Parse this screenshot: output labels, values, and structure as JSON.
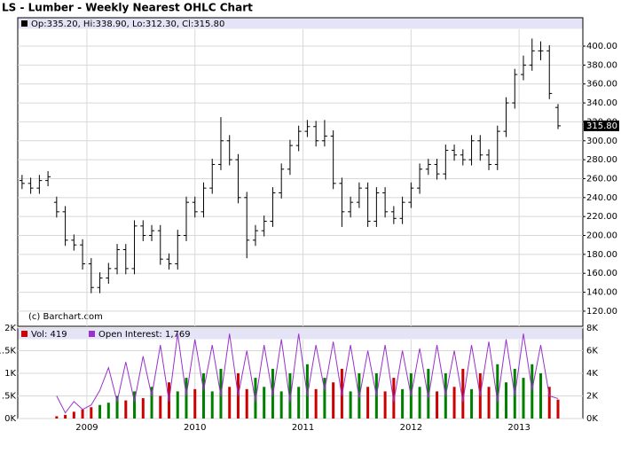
{
  "chart_data": {
    "type": "ohlc",
    "title": "LS - Lumber - Weekly Nearest OHLC Chart",
    "subtitle": "Op:335.20, Hi:338.90, Lo:312.30, Cl:315.80",
    "watermark": "(c) Barchart.com",
    "x": [
      2008.4,
      2008.48,
      2008.56,
      2008.64,
      2008.72,
      2008.8,
      2008.88,
      2008.96,
      2009.04,
      2009.12,
      2009.2,
      2009.28,
      2009.36,
      2009.44,
      2009.52,
      2009.6,
      2009.68,
      2009.76,
      2009.84,
      2009.92,
      2010,
      2010.08,
      2010.16,
      2010.24,
      2010.32,
      2010.4,
      2010.48,
      2010.56,
      2010.64,
      2010.72,
      2010.8,
      2010.88,
      2010.96,
      2011.04,
      2011.12,
      2011.2,
      2011.28,
      2011.36,
      2011.44,
      2011.52,
      2011.6,
      2011.68,
      2011.76,
      2011.84,
      2011.92,
      2012,
      2012.08,
      2012.16,
      2012.24,
      2012.32,
      2012.4,
      2012.48,
      2012.56,
      2012.64,
      2012.72,
      2012.8,
      2012.88,
      2012.96,
      2013.04,
      2013.12,
      2013.2,
      2013.28,
      2013.36
    ],
    "open": [
      258,
      255,
      250,
      258,
      235,
      225,
      195,
      190,
      170,
      145,
      155,
      165,
      185,
      165,
      210,
      200,
      205,
      175,
      170,
      200,
      235,
      225,
      250,
      275,
      300,
      280,
      240,
      195,
      205,
      215,
      245,
      270,
      295,
      310,
      315,
      300,
      305,
      255,
      225,
      235,
      250,
      215,
      245,
      225,
      218,
      235,
      250,
      270,
      275,
      265,
      290,
      285,
      280,
      300,
      285,
      275,
      310,
      340,
      370,
      380,
      395,
      395,
      335.2
    ],
    "high": [
      264,
      261,
      264,
      268,
      241,
      231,
      201,
      196,
      176,
      161,
      171,
      191,
      191,
      216,
      216,
      211,
      211,
      181,
      206,
      241,
      241,
      256,
      281,
      325,
      306,
      286,
      246,
      211,
      221,
      251,
      276,
      301,
      316,
      322,
      321,
      322,
      311,
      261,
      241,
      256,
      256,
      251,
      251,
      231,
      241,
      256,
      276,
      281,
      281,
      296,
      296,
      291,
      306,
      306,
      291,
      316,
      346,
      376,
      390,
      408,
      405,
      401,
      338.9
    ],
    "low": [
      249,
      244,
      244,
      252,
      219,
      189,
      184,
      164,
      139,
      139,
      149,
      159,
      159,
      159,
      194,
      194,
      169,
      164,
      164,
      194,
      219,
      219,
      244,
      269,
      274,
      234,
      176,
      189,
      199,
      209,
      239,
      264,
      289,
      304,
      294,
      294,
      249,
      209,
      219,
      229,
      209,
      209,
      219,
      212,
      212,
      229,
      244,
      264,
      259,
      259,
      279,
      274,
      274,
      279,
      269,
      269,
      304,
      334,
      364,
      374,
      385,
      344,
      312.3
    ],
    "close": [
      255,
      250,
      258,
      262,
      225,
      195,
      190,
      170,
      145,
      155,
      165,
      185,
      165,
      210,
      200,
      205,
      175,
      170,
      200,
      235,
      225,
      250,
      275,
      300,
      280,
      240,
      195,
      205,
      215,
      245,
      270,
      295,
      310,
      315,
      300,
      305,
      255,
      225,
      235,
      250,
      215,
      245,
      225,
      218,
      235,
      250,
      270,
      275,
      265,
      290,
      285,
      280,
      300,
      285,
      275,
      310,
      340,
      370,
      380,
      395,
      395,
      350,
      315.8
    ],
    "up_color": "#008000",
    "down_color": "#cc0000",
    "bar_color": "#000000",
    "xlim": [
      2008.36,
      2013.59
    ],
    "xticks": [
      2009,
      2010,
      2011,
      2012,
      2013
    ],
    "ylim": [
      104,
      430
    ],
    "yticks": [
      {
        "value": 120,
        "label": "120.00"
      },
      {
        "value": 140,
        "label": "140.00"
      },
      {
        "value": 160,
        "label": "160.00"
      },
      {
        "value": 180,
        "label": "180.00"
      },
      {
        "value": 200,
        "label": "200.00"
      },
      {
        "value": 220,
        "label": "220.00"
      },
      {
        "value": 240,
        "label": "240.00"
      },
      {
        "value": 260,
        "label": "260.00"
      },
      {
        "value": 280,
        "label": "280.00"
      },
      {
        "value": 300,
        "label": "300.00"
      },
      {
        "value": 320,
        "label": "320.00"
      },
      {
        "value": 340,
        "label": "340.00"
      },
      {
        "value": 360,
        "label": "360.00"
      },
      {
        "value": 380,
        "label": "380.00"
      },
      {
        "value": 400,
        "label": "400.00"
      }
    ],
    "grid": true,
    "last_label": {
      "value": 315.8,
      "label": "315.80"
    },
    "volume": {
      "name": "Vol: 419",
      "color": "#cc0000",
      "values": [
        null,
        null,
        null,
        null,
        50,
        80,
        150,
        200,
        250,
        300,
        350,
        500,
        400,
        600,
        450,
        700,
        500,
        800,
        600,
        900,
        650,
        1000,
        600,
        1100,
        700,
        1000,
        650,
        900,
        700,
        1100,
        600,
        1000,
        700,
        1200,
        650,
        900,
        800,
        1100,
        600,
        1000,
        700,
        1000,
        600,
        900,
        650,
        1000,
        700,
        1100,
        600,
        1000,
        700,
        1100,
        650,
        1000,
        700,
        1200,
        800,
        1100,
        900,
        1200,
        1000,
        700,
        419
      ],
      "ylim": [
        0,
        2000
      ],
      "yticks": [
        {
          "value": 0,
          "label": "0K"
        },
        {
          "value": 500,
          "label": ".5K"
        },
        {
          "value": 1000,
          "label": "1K"
        },
        {
          "value": 1500,
          "label": "1.5K"
        },
        {
          "value": 2000,
          "label": "2K"
        }
      ]
    },
    "open_interest": {
      "name": "Open Interest: 1,769",
      "color": "#9933cc",
      "values": [
        null,
        null,
        null,
        null,
        2000,
        500,
        1500,
        800,
        1200,
        2500,
        4500,
        1500,
        5000,
        1500,
        5500,
        2000,
        6500,
        1500,
        7500,
        2000,
        7000,
        2500,
        6500,
        2000,
        7500,
        2000,
        6000,
        1500,
        6500,
        2000,
        7000,
        1500,
        7500,
        2000,
        6500,
        2500,
        6800,
        2000,
        6500,
        1800,
        6000,
        2000,
        6500,
        1500,
        6000,
        2000,
        6200,
        1800,
        6500,
        2000,
        6000,
        1500,
        6500,
        2000,
        6800,
        1500,
        7000,
        2000,
        7500,
        2500,
        6500,
        2000,
        1769
      ],
      "ylim": [
        0,
        8000
      ],
      "yticks": [
        {
          "value": 0,
          "label": "0K"
        },
        {
          "value": 2000,
          "label": "2K"
        },
        {
          "value": 4000,
          "label": "4K"
        },
        {
          "value": 6000,
          "label": "6K"
        },
        {
          "value": 8000,
          "label": "8K"
        }
      ]
    }
  }
}
